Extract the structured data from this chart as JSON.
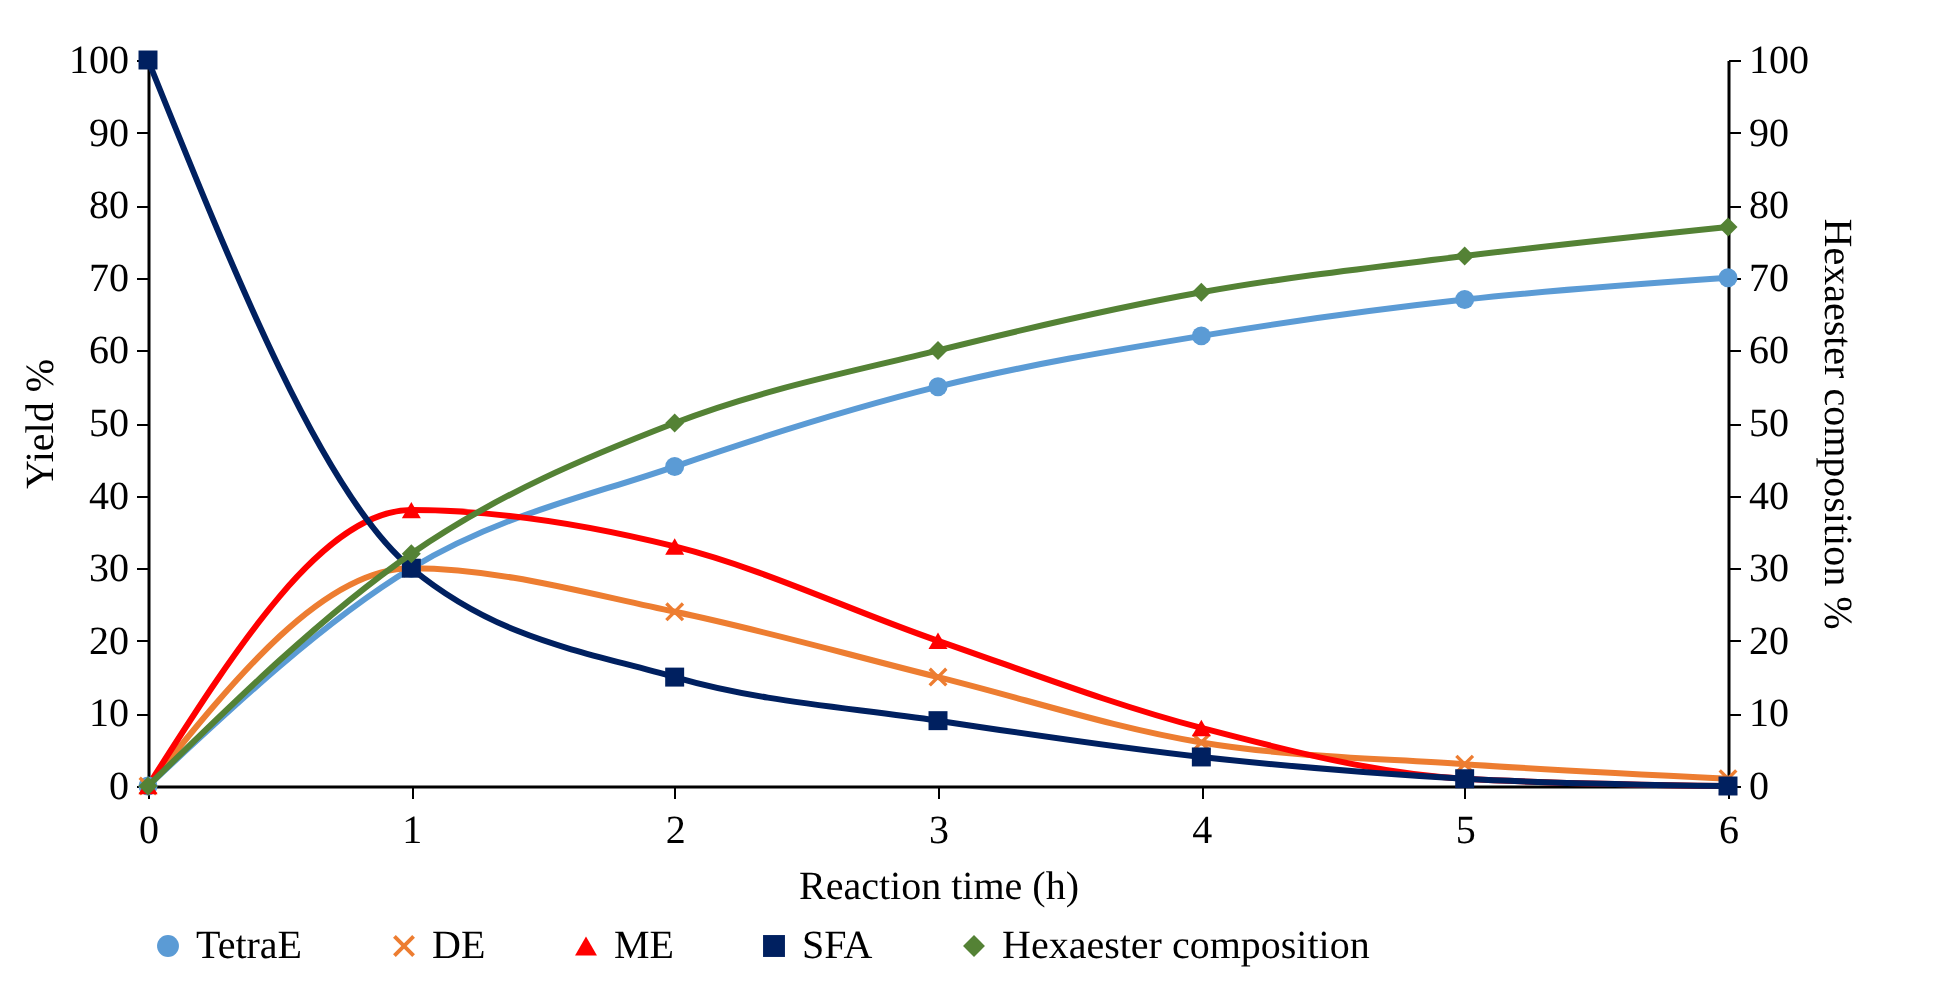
{
  "chart_data": {
    "type": "line",
    "xlabel": "Reaction time (h)",
    "ylabel": "Yield %",
    "y2label": "Hexaester composition %",
    "x": [
      0,
      1,
      2,
      3,
      4,
      5,
      6
    ],
    "xlim": [
      0,
      6
    ],
    "xticks": [
      0,
      1,
      2,
      3,
      4,
      5,
      6
    ],
    "ylim": [
      0,
      100
    ],
    "yticks": [
      0,
      10,
      20,
      30,
      40,
      50,
      60,
      70,
      80,
      90,
      100
    ],
    "y2lim": [
      0,
      100
    ],
    "y2ticks": [
      0,
      10,
      20,
      30,
      40,
      50,
      60,
      70,
      80,
      90,
      100
    ],
    "grid": false,
    "legend": "bottom",
    "line_style": "solid",
    "series": [
      {
        "name": "TetraE",
        "color": "#5b9bd5",
        "marker": "circle",
        "values": [
          0,
          30,
          44,
          55,
          62,
          67,
          70
        ]
      },
      {
        "name": "DE",
        "color": "#ed7d31",
        "marker": "cross",
        "values": [
          0,
          30,
          24,
          15,
          6,
          3,
          1
        ]
      },
      {
        "name": "ME",
        "color": "#ff0000",
        "marker": "triangle",
        "values": [
          0,
          38,
          33,
          20,
          8,
          1,
          0
        ]
      },
      {
        "name": "SFA",
        "color": "#002060",
        "marker": "square",
        "values": [
          100,
          30,
          15,
          9,
          4,
          1,
          0
        ]
      },
      {
        "name": "Hexaester composition",
        "color": "#548235",
        "marker": "diamond",
        "axis": "y2",
        "values": [
          0,
          32,
          50,
          60,
          68,
          73,
          77
        ]
      }
    ]
  }
}
